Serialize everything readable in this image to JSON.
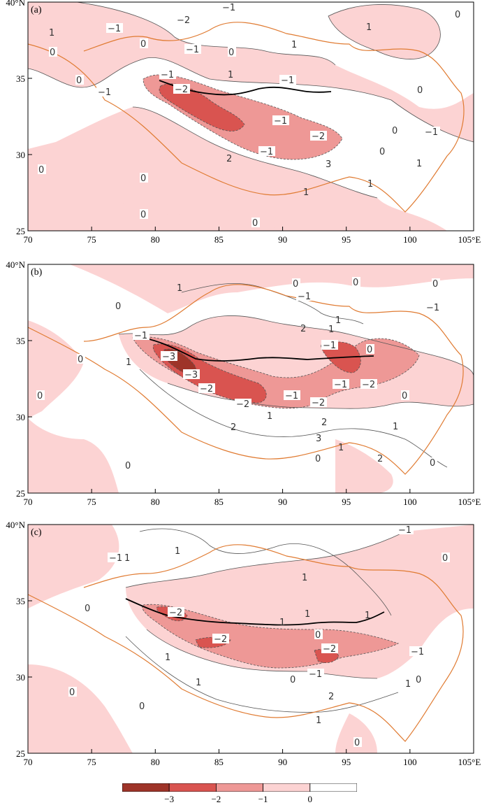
{
  "panels": [
    {
      "label": "(a)"
    },
    {
      "label": "(b)"
    },
    {
      "label": "(c)"
    }
  ],
  "axes": {
    "x_ticks": [
      "70",
      "75",
      "80",
      "85",
      "90",
      "95",
      "100",
      "105°E"
    ],
    "y_ticks": [
      "40°N",
      "35",
      "30",
      "25"
    ]
  },
  "legend": {
    "labels": [
      "−3",
      "−2",
      "−1",
      "0"
    ],
    "colors": [
      "#9e3429",
      "#d95450",
      "#ee9896",
      "#fcd3d3",
      "#ffffff"
    ]
  },
  "colors": {
    "border": "#e07b32",
    "contour": "#555555",
    "trend_line": "#000000"
  }
}
